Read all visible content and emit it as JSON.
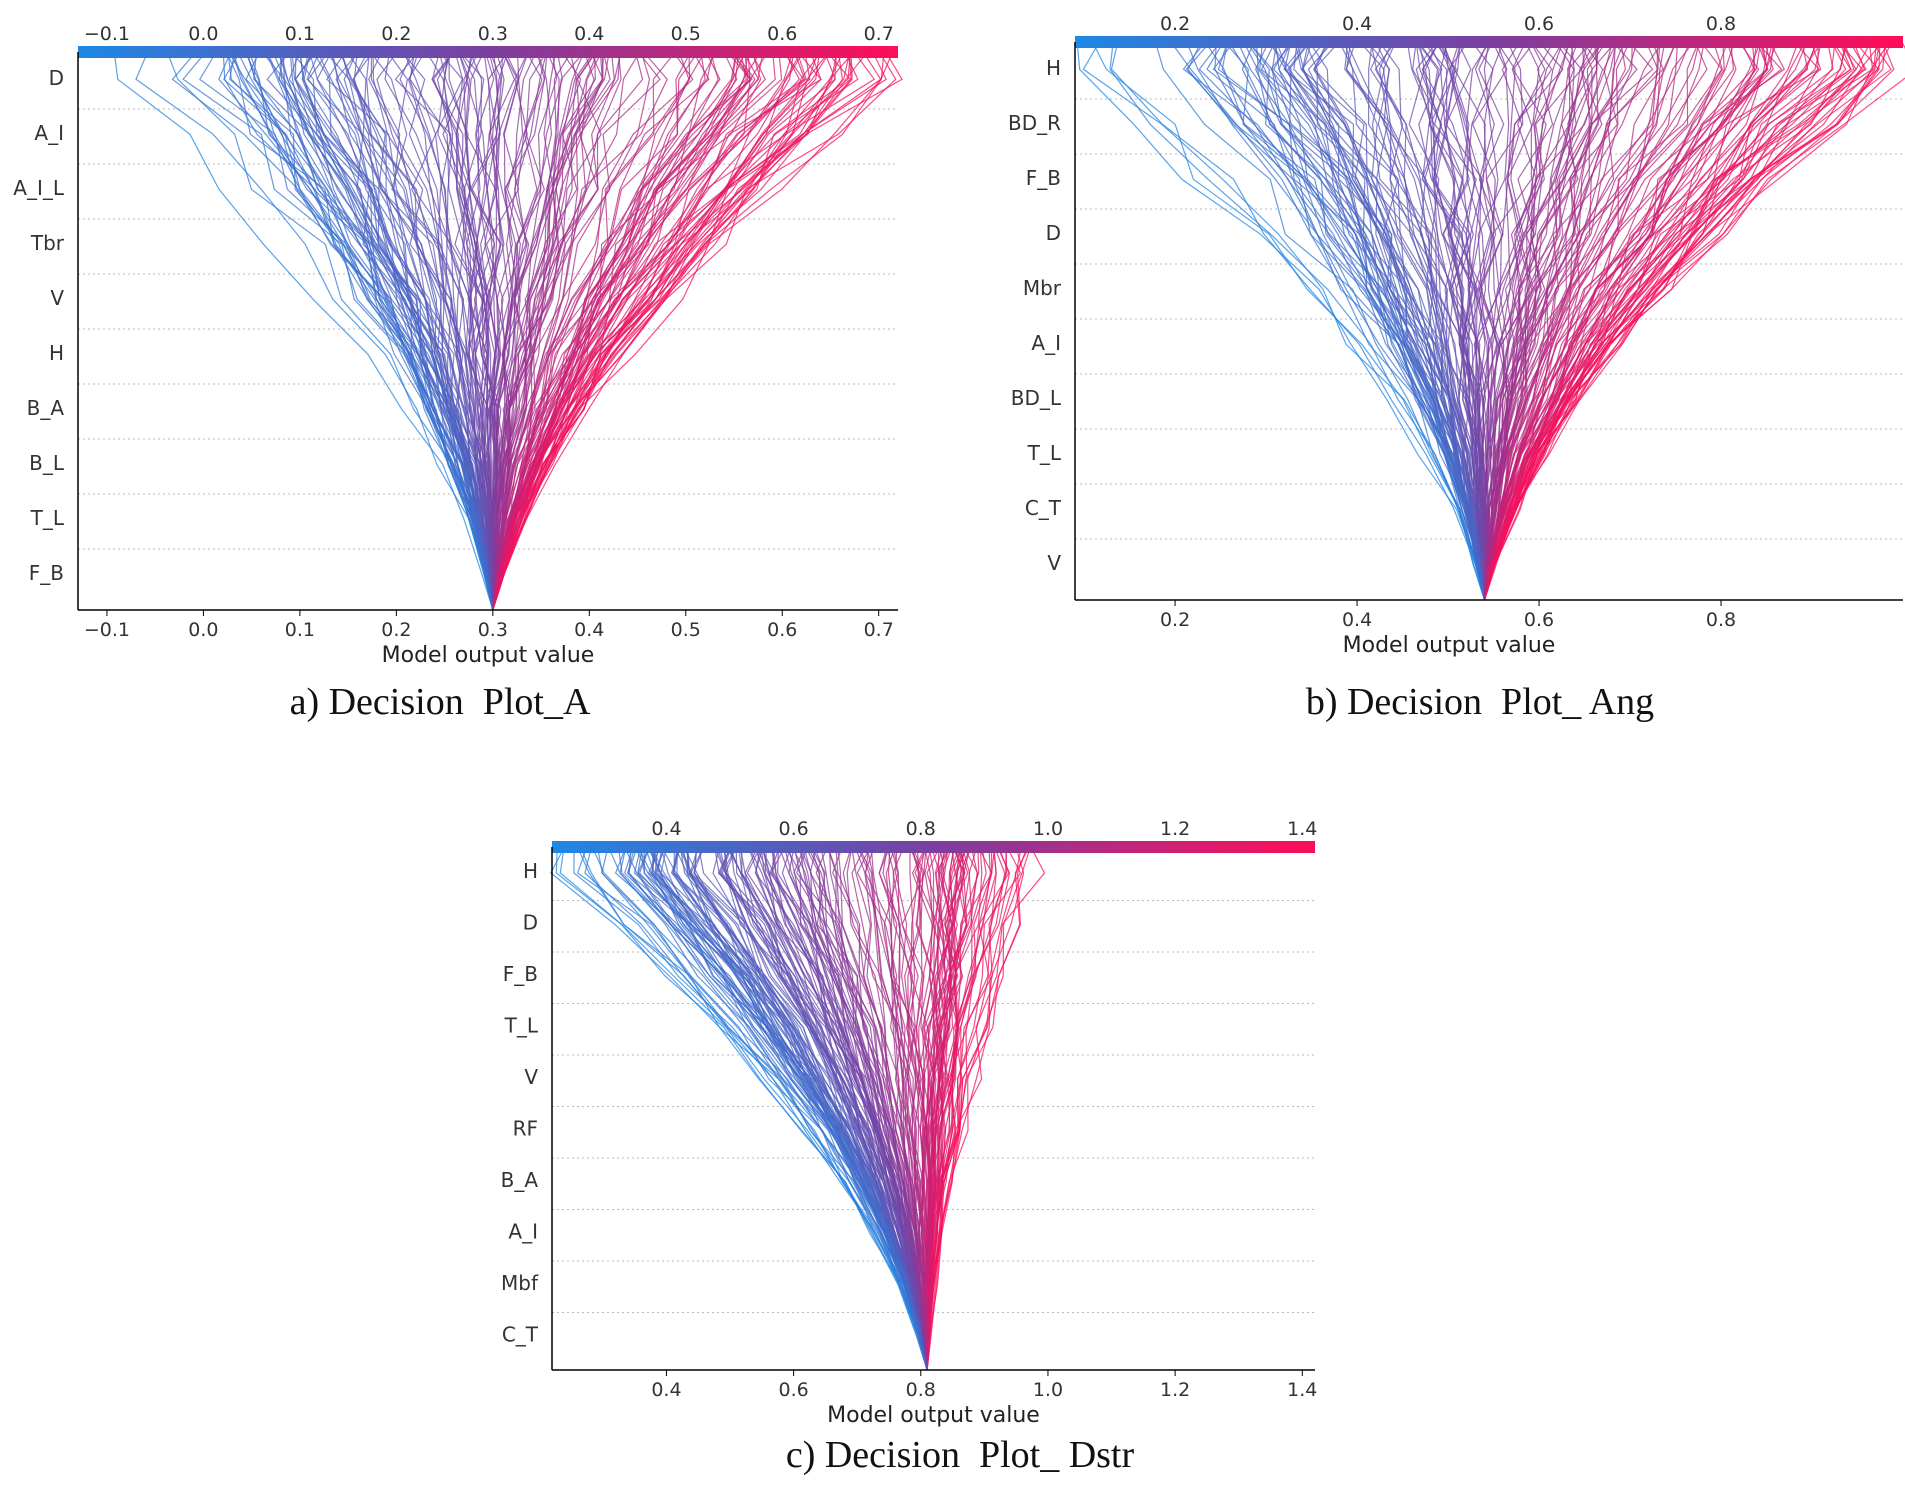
{
  "chart_data": [
    {
      "type": "line",
      "subtype": "decision-plot",
      "caption": "a) Decision  Plot_A",
      "xlabel": "Model output value",
      "xlim": [
        -0.13,
        0.72
      ],
      "ticks": [
        -0.1,
        0.0,
        0.1,
        0.2,
        0.3,
        0.4,
        0.5,
        0.6,
        0.7
      ],
      "tick_labels": [
        "−0.1",
        "0.0",
        "0.1",
        "0.2",
        "0.3",
        "0.4",
        "0.5",
        "0.6",
        "0.7"
      ],
      "features": [
        "D",
        "A_I",
        "A_I_L",
        "Tbr",
        "V",
        "H",
        "B_A",
        "B_L",
        "T_L",
        "F_B"
      ],
      "base_value": 0.3,
      "output_range": [
        -0.1,
        0.72
      ],
      "colormap": [
        "#1e88e5",
        "#7b3fa0",
        "#ff0d57"
      ],
      "grid": "dotted horizontal"
    },
    {
      "type": "line",
      "subtype": "decision-plot",
      "caption": "b) Decision  Plot_ Ang",
      "xlabel": "Model output value",
      "xlim": [
        0.09,
        1.0
      ],
      "ticks": [
        0.2,
        0.4,
        0.6,
        0.8
      ],
      "tick_labels": [
        "0.2",
        "0.4",
        "0.6",
        "0.8"
      ],
      "features": [
        "H",
        "BD_R",
        "F_B",
        "D",
        "Mbr",
        "A_I",
        "BD_L",
        "T_L",
        "C_T",
        "V"
      ],
      "base_value": 0.54,
      "output_range": [
        0.09,
        1.0
      ],
      "colormap": [
        "#1e88e5",
        "#7b3fa0",
        "#ff0d57"
      ],
      "grid": "dotted horizontal"
    },
    {
      "type": "line",
      "subtype": "decision-plot",
      "caption": "c) Decision  Plot_ Dstr",
      "xlabel": "Model output value",
      "xlim": [
        0.22,
        1.42
      ],
      "ticks": [
        0.4,
        0.6,
        0.8,
        1.0,
        1.2,
        1.4
      ],
      "tick_labels": [
        "0.4",
        "0.6",
        "0.8",
        "1.0",
        "1.2",
        "1.4"
      ],
      "features": [
        "H",
        "D",
        "F_B",
        "T_L",
        "V",
        "RF",
        "B_A",
        "A_I",
        "Mbf",
        "C_T"
      ],
      "base_value": 0.81,
      "output_range": [
        0.22,
        0.98
      ],
      "colormap": [
        "#1e88e5",
        "#7b3fa0",
        "#ff0d57"
      ],
      "grid": "dotted horizontal"
    }
  ]
}
